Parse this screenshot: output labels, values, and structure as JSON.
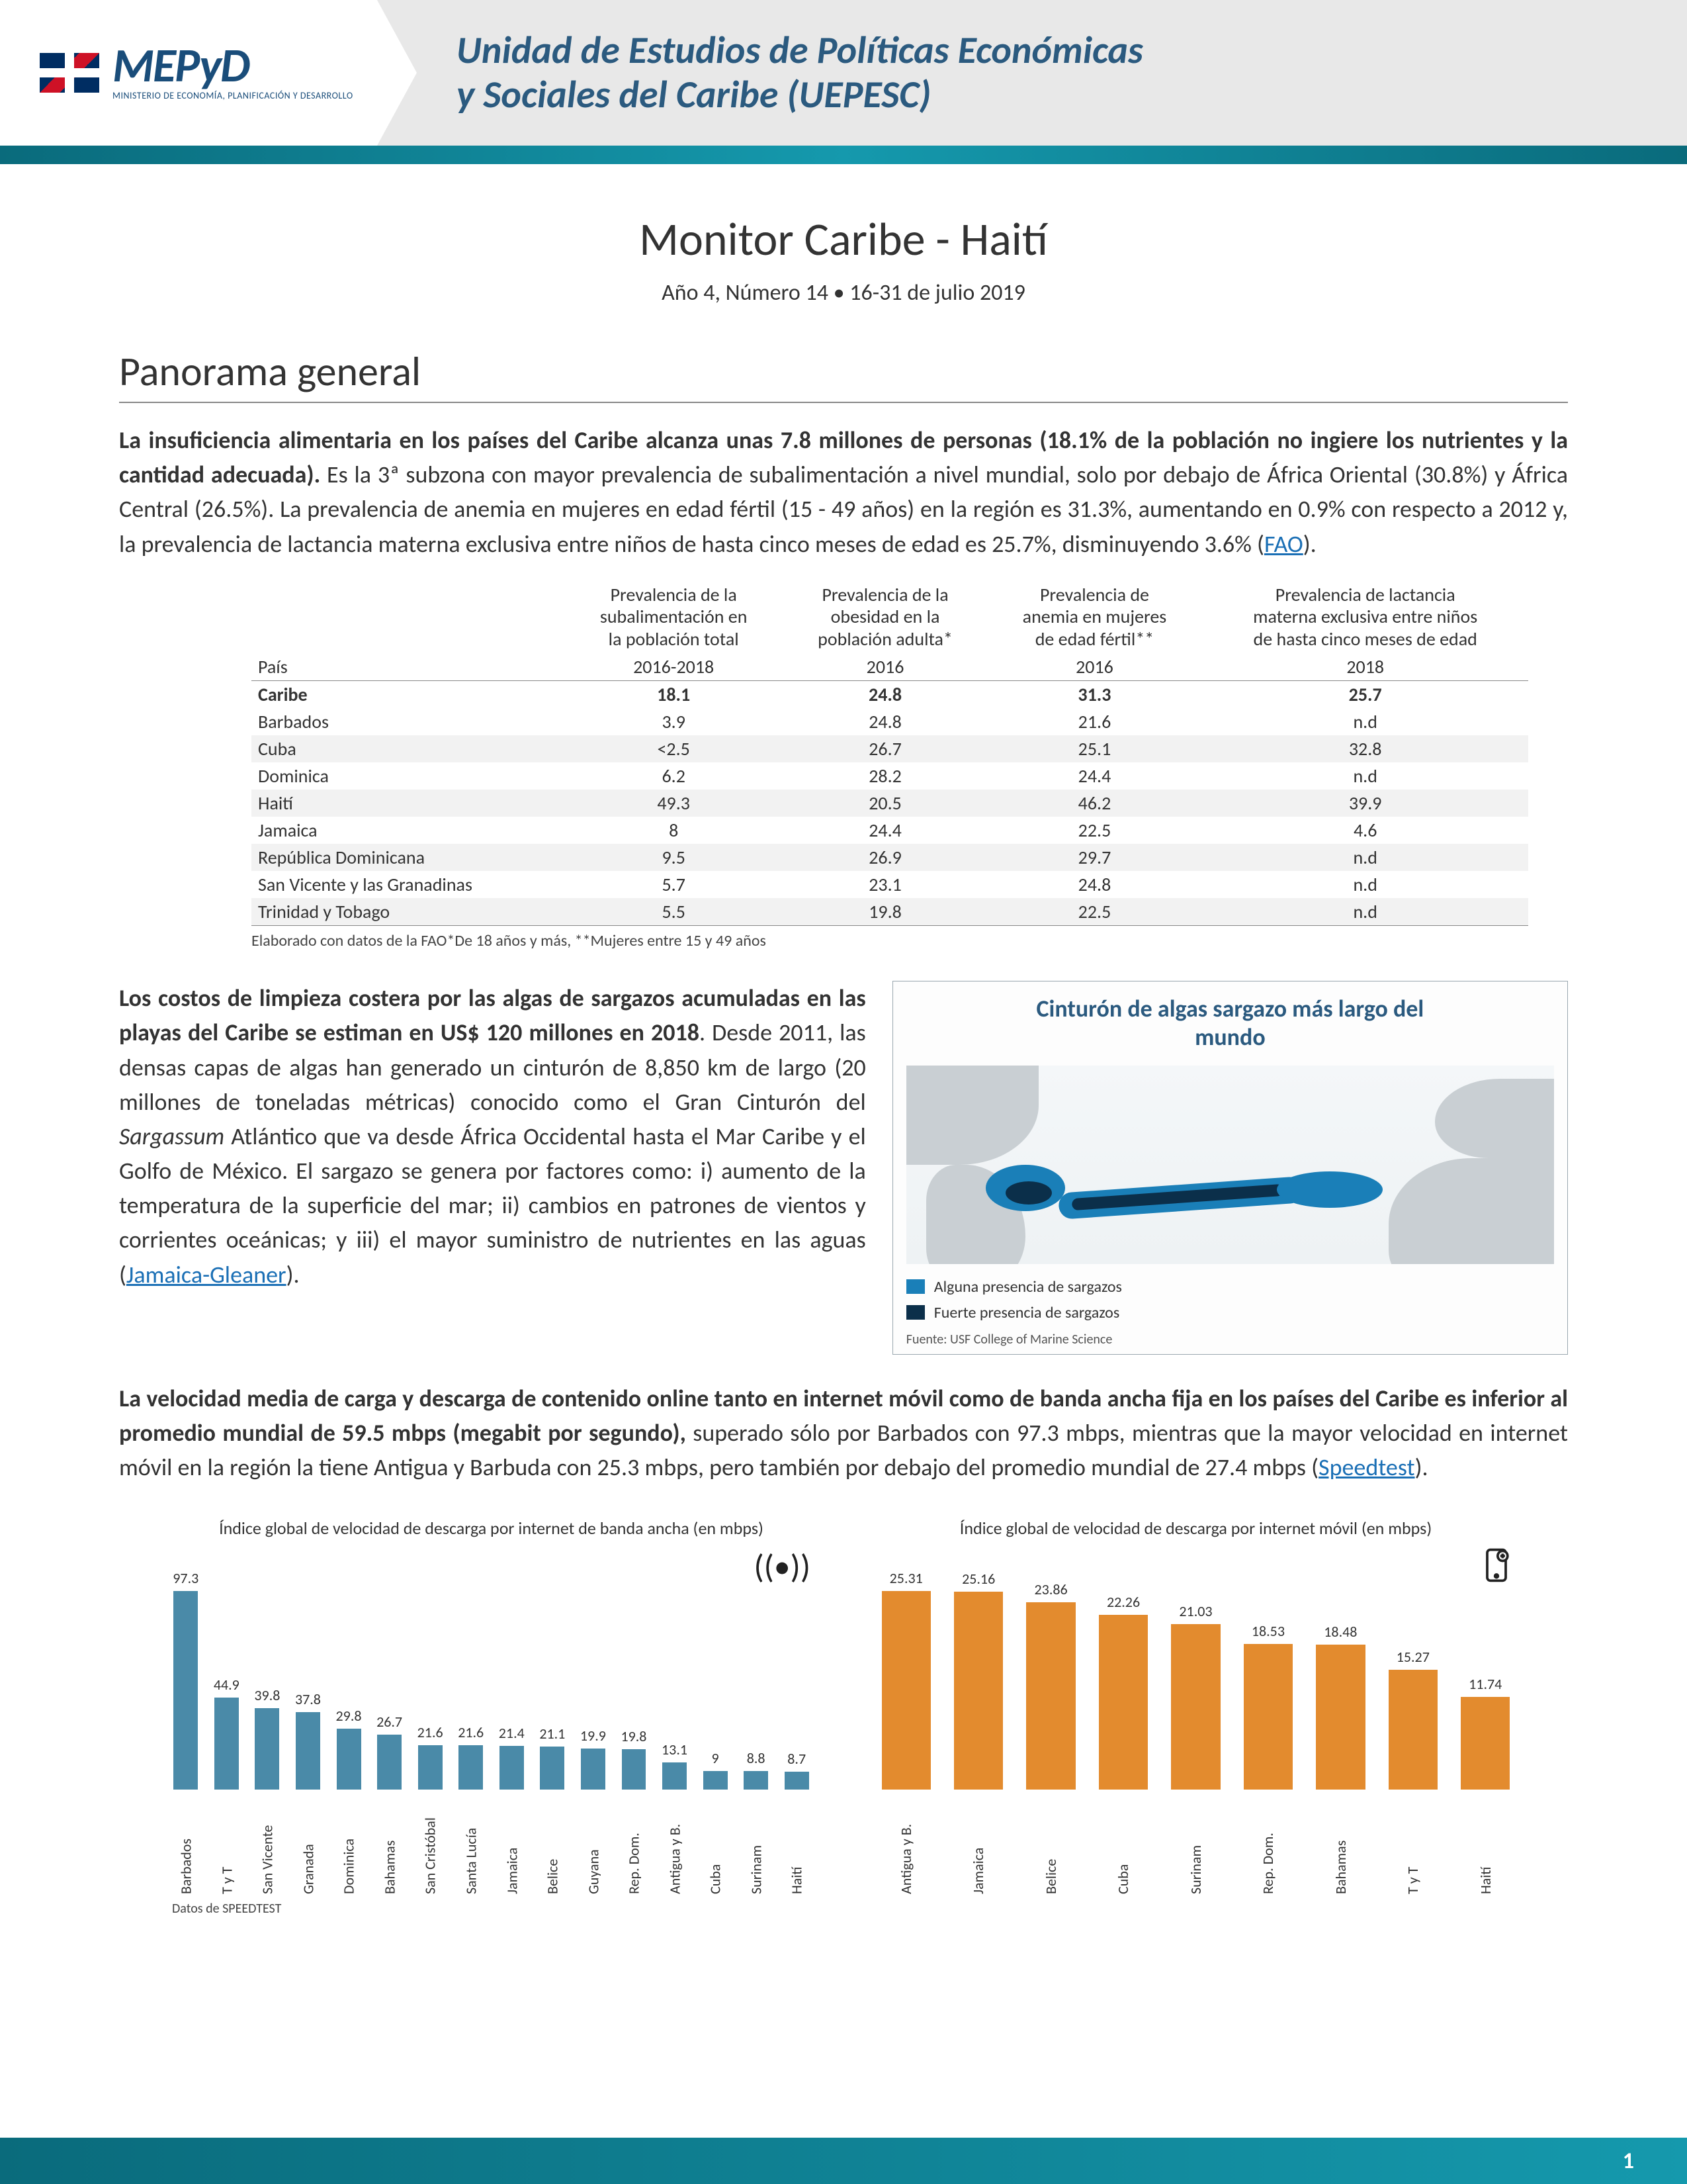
{
  "header": {
    "logo_main": "MEPyD",
    "logo_sub": "MINISTERIO DE ECONOMÍA, PLANIFICACIÓN Y DESARROLLO",
    "unit_title_line1": "Unidad de Estudios de Políticas Económicas",
    "unit_title_line2": "y Sociales del Caribe (UEPESC)"
  },
  "doc": {
    "title": "Monitor Caribe - Haití",
    "subtitle": "Año 4, Número 14 • 16-31 de julio 2019"
  },
  "section1": {
    "title": "Panorama general",
    "lead_bold": "La insuficiencia alimentaria en los países del Caribe alcanza unas 7.8 millones de personas (18.1% de la población no ingiere los nutrientes y la cantidad adecuada).",
    "lead_rest": " Es la 3ª subzona con mayor prevalencia de subalimentación a nivel mundial, solo por debajo de África Oriental (30.8%) y África Central (26.5%). La  prevalencia de anemia en mujeres en edad fértil (15 - 49 años) en la región es 31.3%, aumentando en 0.9% con respecto a 2012 y, la prevalencia de lactancia materna exclusiva entre niños de hasta cinco meses de edad es 25.7%, disminuyendo 3.6% (",
    "lead_link": "FAO",
    "lead_close": ")."
  },
  "table": {
    "headers": {
      "col0": "País",
      "col1a": "Prevalencia de la",
      "col1b": "subalimentación en",
      "col1c": "la población total",
      "col2a": "Prevalencia de la",
      "col2b": "obesidad en la",
      "col2c": "población adulta*",
      "col3a": "Prevalencia de",
      "col3b": "anemia en mujeres",
      "col3c": "de edad fértil**",
      "col4a": "Prevalencia de lactancia",
      "col4b": "materna exclusiva entre niños",
      "col4c": "de hasta cinco meses de edad",
      "yr1": "2016-2018",
      "yr2": "2016",
      "yr3": "2016",
      "yr4": "2018"
    },
    "rows": [
      {
        "c0": "Caribe",
        "c1": "18.1",
        "c2": "24.8",
        "c3": "31.3",
        "c4": "25.7",
        "sum": true
      },
      {
        "c0": "Barbados",
        "c1": "3.9",
        "c2": "24.8",
        "c3": "21.6",
        "c4": "n.d",
        "alt": false
      },
      {
        "c0": "Cuba",
        "c1": "<2.5",
        "c2": "26.7",
        "c3": "25.1",
        "c4": "32.8",
        "alt": true
      },
      {
        "c0": "Dominica",
        "c1": "6.2",
        "c2": "28.2",
        "c3": "24.4",
        "c4": "n.d",
        "alt": false
      },
      {
        "c0": "Haití",
        "c1": "49.3",
        "c2": "20.5",
        "c3": "46.2",
        "c4": "39.9",
        "alt": true
      },
      {
        "c0": "Jamaica",
        "c1": "8",
        "c2": "24.4",
        "c3": "22.5",
        "c4": "4.6",
        "alt": false
      },
      {
        "c0": "República Dominicana",
        "c1": "9.5",
        "c2": "26.9",
        "c3": "29.7",
        "c4": "n.d",
        "alt": true
      },
      {
        "c0": "San Vicente y las Granadinas",
        "c1": "5.7",
        "c2": "23.1",
        "c3": "24.8",
        "c4": "n.d",
        "alt": false
      },
      {
        "c0": "Trinidad y Tobago",
        "c1": "5.5",
        "c2": "19.8",
        "c3": "22.5",
        "c4": "n.d",
        "alt": true
      }
    ],
    "footnote": "Elaborado con datos de la FAO*De 18 años y más, **Mujeres entre 15 y 49 años"
  },
  "sargassum": {
    "bold": "Los costos de limpieza costera por las algas de sargazos acumuladas en las playas del Caribe se estiman en US$ 120 millones en 2018",
    "rest1": ". Desde 2011, las densas capas de algas han generado un cinturón de 8,850 km de largo (20 millones de toneladas métricas) conocido como el Gran Cinturón del ",
    "italic": "Sargassum",
    "rest2": " Atlántico que va desde África Occidental hasta el Mar Caribe y el Golfo de México. El sargazo se genera por factores como: i) aumento de la temperatura de la superficie del mar; ii) cambios en patrones de vientos y corrientes oceánicas; y iii) el mayor suministro de nutrientes en las aguas (",
    "link": "Jamaica-Gleaner",
    "close": ")."
  },
  "map": {
    "title_l1": "Cinturón de algas sargazo más largo del",
    "title_l2": "mundo",
    "legend1": "Alguna presencia de sargazos",
    "legend2": "Fuerte presencia de sargazos",
    "color_light": "#1a7fb8",
    "color_dark": "#0b2f4a",
    "source": "Fuente: USF College of Marine Science"
  },
  "speed": {
    "bold": "La velocidad media de carga y descarga de contenido online tanto en internet móvil como de banda ancha fija en los países del Caribe es inferior al promedio mundial de 59.5 mbps (megabit por segundo),",
    "rest": " superado sólo por Barbados con 97.3 mbps, mientras que la mayor velocidad en internet móvil en la región la tiene Antigua y Barbuda con 25.3 mbps, pero también por debajo del promedio mundial de 27.4 mbps (",
    "link": "Speedtest",
    "close": ")."
  },
  "chart_bb": {
    "title": "Índice global de velocidad de descarga por internet de banda ancha (en mbps)",
    "icon": "((•))",
    "color": "#4a8aa8",
    "max": 97.3,
    "bars": [
      {
        "label": "Barbados",
        "v": 97.3
      },
      {
        "label": "T y T",
        "v": 44.9
      },
      {
        "label": "San Vicente",
        "v": 39.8
      },
      {
        "label": "Granada",
        "v": 37.8
      },
      {
        "label": "Dominica",
        "v": 29.8
      },
      {
        "label": "Bahamas",
        "v": 26.7
      },
      {
        "label": "San Cristóbal",
        "v": 21.6
      },
      {
        "label": "Santa Lucía",
        "v": 21.6
      },
      {
        "label": "Jamaica",
        "v": 21.4
      },
      {
        "label": "Belice",
        "v": 21.1
      },
      {
        "label": "Guyana",
        "v": 19.9
      },
      {
        "label": "Rep. Dom.",
        "v": 19.8
      },
      {
        "label": "Antigua y B.",
        "v": 13.1
      },
      {
        "label": "Cuba",
        "v": 9.0
      },
      {
        "label": "Surinam",
        "v": 8.8
      },
      {
        "label": "Haití",
        "v": 8.7
      }
    ],
    "source": "Datos de SPEEDTEST"
  },
  "chart_mob": {
    "title": "Índice global de velocidad de descarga por internet móvil (en mbps)",
    "icon": "📱",
    "color": "#e38b2e",
    "max": 25.31,
    "bars": [
      {
        "label": "Antigua y B.",
        "v": 25.31
      },
      {
        "label": "Jamaica",
        "v": 25.16
      },
      {
        "label": "Belice",
        "v": 23.86
      },
      {
        "label": "Cuba",
        "v": 22.26
      },
      {
        "label": "Surinam",
        "v": 21.03
      },
      {
        "label": "Rep. Dom.",
        "v": 18.53
      },
      {
        "label": "Bahamas",
        "v": 18.48
      },
      {
        "label": "T y T",
        "v": 15.27
      },
      {
        "label": "Haití",
        "v": 11.74
      }
    ]
  },
  "footer": {
    "page": "1"
  }
}
